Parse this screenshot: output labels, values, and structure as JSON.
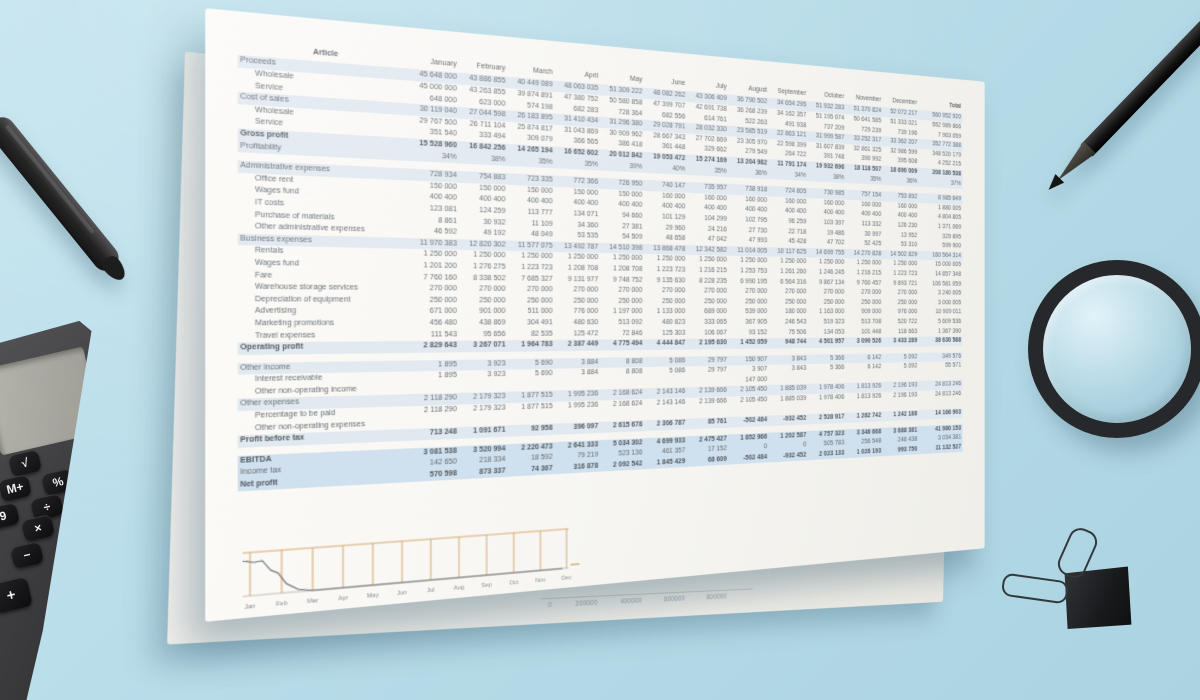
{
  "scene": {
    "background_top": "#c3e4ef",
    "background_bottom": "#abd3e1",
    "paper": "#f7f6f2",
    "paper_under": "#f2f0ea",
    "text": "#646b72",
    "text_bold": "#4f565d",
    "band_light": "#e1e9f0",
    "band_strong": "#cfe0ee",
    "grid_orange": "#cf9b57",
    "chart_line": "#75797d"
  },
  "table": {
    "columns": [
      "Article",
      "January",
      "February",
      "March",
      "April",
      "May",
      "June",
      "July",
      "August",
      "September",
      "October",
      "November",
      "December",
      "Total"
    ],
    "rows": [
      {
        "label": "Proceeds",
        "s": "sec",
        "v": [
          "45 648 000",
          "43 886 855",
          "40 449 089",
          "48 063 035",
          "51 309 222",
          "48 082 262",
          "43 306 409",
          "36 790 502",
          "34 654 295",
          "51 932 283",
          "51 370 824",
          "52 072 217",
          "560 952 920"
        ]
      },
      {
        "label": "Wholesale",
        "s": "sub",
        "v": [
          "45 000 000",
          "43 263 855",
          "39 874 891",
          "47 380 752",
          "50 580 858",
          "47 399 707",
          "42 691 738",
          "36 268 239",
          "34 162 357",
          "51 195 074",
          "50 641 585",
          "51 333 021",
          "552 989 866"
        ]
      },
      {
        "label": "Service",
        "s": "sub",
        "v": [
          "648 000",
          "623 000",
          "574 198",
          "682 283",
          "728 364",
          "682 556",
          "614 761",
          "522 263",
          "491 938",
          "737 209",
          "729 239",
          "739 196",
          "7 963 059"
        ]
      },
      {
        "label": "Cost of sales",
        "s": "sec",
        "v": [
          "30 119 040",
          "27 044 598",
          "26 183 895",
          "31 410 434",
          "31 296 380",
          "29 028 791",
          "28 032 330",
          "23 585 519",
          "22 863 121",
          "31 999 587",
          "33 252 317",
          "33 362 207",
          "352 772 388"
        ]
      },
      {
        "label": "Wholesale",
        "s": "sub",
        "v": [
          "29 767 500",
          "26 711 104",
          "25 874 817",
          "31 043 869",
          "30 909 962",
          "28 667 343",
          "27 702 669",
          "23 305 970",
          "22 598 399",
          "31 607 839",
          "32 861 325",
          "32 986 599",
          "348 520 179"
        ]
      },
      {
        "label": "Service",
        "s": "sub",
        "v": [
          "351 540",
          "333 494",
          "309 079",
          "366 565",
          "386 418",
          "361 448",
          "329 662",
          "279 549",
          "264 722",
          "391 748",
          "390 992",
          "395 608",
          "4 252 215"
        ]
      },
      {
        "label": "Gross profit",
        "s": "secb",
        "v": [
          "15 528 960",
          "16 842 256",
          "14 265 194",
          "16 652 602",
          "20 012 842",
          "19 053 472",
          "15 274 169",
          "13 204 982",
          "11 791 174",
          "19 932 696",
          "18 118 507",
          "18 690 009",
          "208 180 538"
        ]
      },
      {
        "label": "Profitability",
        "s": "sec",
        "v": [
          "34%",
          "38%",
          "35%",
          "35%",
          "39%",
          "40%",
          "35%",
          "36%",
          "34%",
          "38%",
          "35%",
          "36%",
          "37%"
        ]
      },
      {
        "label": "",
        "s": "sp",
        "v": [
          "",
          "",
          "",
          "",
          "",
          "",
          "",
          "",
          "",
          "",
          "",
          "",
          ""
        ]
      },
      {
        "label": "Administrative expenses",
        "s": "sec",
        "v": [
          "728 934",
          "754 883",
          "723 335",
          "772 366",
          "726 950",
          "740 147",
          "735 957",
          "738 918",
          "724 805",
          "730 985",
          "757 154",
          "753 892",
          "8 985 649"
        ]
      },
      {
        "label": "Office rent",
        "s": "sub",
        "v": [
          "150 000",
          "150 000",
          "150 000",
          "150 000",
          "150 000",
          "160 000",
          "160 000",
          "160 000",
          "160 000",
          "160 000",
          "160 000",
          "160 000",
          "1 880 005"
        ]
      },
      {
        "label": "Wages fund",
        "s": "sub",
        "v": [
          "400 400",
          "400 400",
          "400 400",
          "400 400",
          "400 400",
          "400 400",
          "400 400",
          "400 400",
          "400 400",
          "400 400",
          "400 400",
          "400 400",
          "4 804 805"
        ]
      },
      {
        "label": "IT costs",
        "s": "sub",
        "v": [
          "123 081",
          "124 259",
          "113 777",
          "134 071",
          "94 660",
          "101 129",
          "104 299",
          "102 795",
          "96 259",
          "103 397",
          "113 332",
          "126 230",
          "1 371 069"
        ]
      },
      {
        "label": "Purchase of materials",
        "s": "sub",
        "v": [
          "8 861",
          "30 932",
          "11 109",
          "34 360",
          "27 381",
          "29 960",
          "24 216",
          "27 730",
          "22 718",
          "19 486",
          "30 997",
          "13 952",
          "329 895"
        ]
      },
      {
        "label": "Other administrative expenses",
        "s": "sub",
        "v": [
          "46 592",
          "49 192",
          "48 049",
          "53 535",
          "54 509",
          "48 658",
          "47 042",
          "47 993",
          "45 428",
          "47 702",
          "52 425",
          "53 310",
          "599 900"
        ]
      },
      {
        "label": "Business expenses",
        "s": "sec",
        "v": [
          "11 970 383",
          "12 820 302",
          "11 577 075",
          "13 492 787",
          "14 510 398",
          "13 868 478",
          "12 342 582",
          "11 014 005",
          "10 117 625",
          "14 699 755",
          "14 270 828",
          "14 502 829",
          "160 564 314"
        ]
      },
      {
        "label": "Rentals",
        "s": "sub",
        "v": [
          "1 250 000",
          "1 250 000",
          "1 250 000",
          "1 250 000",
          "1 250 000",
          "1 250 000",
          "1 250 000",
          "1 250 000",
          "1 250 000",
          "1 250 000",
          "1 250 000",
          "1 250 000",
          "15 000 005"
        ]
      },
      {
        "label": "Wages fund",
        "s": "sub",
        "v": [
          "1 201 200",
          "1 276 275",
          "1 223 723",
          "1 208 708",
          "1 208 708",
          "1 223 723",
          "1 216 215",
          "1 253 753",
          "1 261 260",
          "1 246 245",
          "1 216 215",
          "1 223 723",
          "14 857 348"
        ]
      },
      {
        "label": "Fare",
        "s": "sub",
        "v": [
          "7 760 160",
          "8 338 502",
          "7 685 327",
          "9 131 977",
          "9 748 752",
          "9 135 630",
          "8 228 235",
          "6 990 195",
          "6 564 316",
          "9 867 134",
          "9 760 457",
          "9 893 721",
          "106 581 059"
        ]
      },
      {
        "label": "Warehouse storage services",
        "s": "sub",
        "v": [
          "270 000",
          "270 000",
          "270 000",
          "270 000",
          "270 000",
          "270 000",
          "270 000",
          "270 000",
          "270 000",
          "270 000",
          "270 000",
          "270 000",
          "3 240 005"
        ]
      },
      {
        "label": "Depreciation of equipment",
        "s": "sub",
        "v": [
          "250 000",
          "250 000",
          "250 000",
          "250 000",
          "250 000",
          "250 000",
          "250 000",
          "250 000",
          "250 000",
          "250 000",
          "250 000",
          "250 000",
          "3 000 005"
        ]
      },
      {
        "label": "Advertising",
        "s": "sub",
        "v": [
          "671 000",
          "901 000",
          "511 000",
          "776 000",
          "1 197 000",
          "1 133 000",
          "689 000",
          "539 000",
          "180 000",
          "1 163 000",
          "909 000",
          "976 000",
          "10 909 011"
        ]
      },
      {
        "label": "Marketing promotions",
        "s": "sub",
        "v": [
          "456 480",
          "438 869",
          "304 491",
          "480 630",
          "513 092",
          "480 823",
          "333 065",
          "367 905",
          "246 543",
          "519 323",
          "513 708",
          "520 722",
          "5 609 536"
        ]
      },
      {
        "label": "Travel expenses",
        "s": "sub",
        "v": [
          "111 543",
          "95 656",
          "82 535",
          "125 472",
          "72 846",
          "125 303",
          "106 067",
          "93 152",
          "75 506",
          "134 053",
          "101 448",
          "118 663",
          "1 367 390"
        ]
      },
      {
        "label": "Operating profit",
        "s": "secb",
        "v": [
          "2 829 643",
          "3 267 071",
          "1 964 783",
          "2 387 449",
          "4 775 494",
          "4 444 847",
          "2 195 630",
          "1 452 059",
          "948 744",
          "4 501 957",
          "3 090 526",
          "3 433 289",
          "38 630 588"
        ]
      },
      {
        "label": "",
        "s": "sp",
        "v": [
          "",
          "",
          "",
          "",
          "",
          "",
          "",
          "",
          "",
          "",
          "",
          "",
          ""
        ]
      },
      {
        "label": "Other income",
        "s": "sec",
        "v": [
          "1 895",
          "3 923",
          "5 690",
          "3 884",
          "8 808",
          "5 086",
          "29 797",
          "150 907",
          "3 843",
          "5 366",
          "6 142",
          "5 092",
          "349 576"
        ]
      },
      {
        "label": "Interest receivable",
        "s": "sub",
        "v": [
          "1 895",
          "3 923",
          "5 690",
          "3 884",
          "8 808",
          "5 086",
          "29 797",
          "3 907",
          "3 843",
          "5 366",
          "6 142",
          "5 092",
          "55 571"
        ]
      },
      {
        "label": "Other non-operating income",
        "s": "sub",
        "v": [
          "",
          "",
          "",
          "",
          "",
          "",
          "",
          "147 000",
          "",
          "",
          "",
          "",
          ""
        ]
      },
      {
        "label": "Other expenses",
        "s": "sec",
        "v": [
          "2 118 290",
          "2 179 323",
          "1 877 515",
          "1 995 236",
          "2 168 624",
          "2 143 146",
          "2 139 666",
          "2 105 450",
          "1 885 039",
          "1 978 406",
          "1 813 926",
          "2 196 193",
          "24 813 246"
        ]
      },
      {
        "label": "Percentage to be paid",
        "s": "sub",
        "v": [
          "2 118 290",
          "2 179 323",
          "1 877 515",
          "1 995 236",
          "2 168 624",
          "2 143 146",
          "2 139 666",
          "2 105 450",
          "1 885 039",
          "1 978 406",
          "1 813 926",
          "2 196 193",
          "24 813 246"
        ]
      },
      {
        "label": "Other non-operating expenses",
        "s": "sub",
        "v": [
          "",
          "",
          "",
          "",
          "",
          "",
          "",
          "",
          "",
          "",
          "",
          "",
          ""
        ]
      },
      {
        "label": "Profit before tax",
        "s": "secb",
        "v": [
          "713 248",
          "1 091 671",
          "92 958",
          "396 097",
          "2 615 678",
          "2 306 787",
          "85 761",
          "-502 484",
          "-932 452",
          "2 528 917",
          "1 282 742",
          "1 242 188",
          "14 166 903"
        ]
      },
      {
        "label": "",
        "s": "sp",
        "v": [
          "",
          "",
          "",
          "",
          "",
          "",
          "",
          "",
          "",
          "",
          "",
          "",
          ""
        ]
      },
      {
        "label": "EBITDA",
        "s": "ebb",
        "v": [
          "3 081 538",
          "3 520 994",
          "2 220 473",
          "2 641 333",
          "5 034 302",
          "4 699 933",
          "2 475 427",
          "1 852 966",
          "1 202 587",
          "4 757 323",
          "3 346 668",
          "3 688 381",
          "41 980 153"
        ]
      },
      {
        "label": "Income tax",
        "s": "eb",
        "v": [
          "142 650",
          "218 334",
          "18 592",
          "79 219",
          "523 136",
          "461 357",
          "17 152",
          "0",
          "0",
          "505 783",
          "256 548",
          "248 438",
          "3 034 381"
        ]
      },
      {
        "label": "Net profit",
        "s": "ebb",
        "v": [
          "570 598",
          "873 337",
          "74 367",
          "316 878",
          "2 092 542",
          "1 845 429",
          "68 609",
          "-502 484",
          "-932 452",
          "2 023 133",
          "1 026 193",
          "993 750",
          "11 132 527"
        ]
      }
    ]
  },
  "mini_chart": {
    "type": "line",
    "months": [
      "Jan",
      "Feb",
      "Mar",
      "Apr",
      "May",
      "Jun",
      "Jul",
      "Aug",
      "Sep",
      "Oct",
      "Nov",
      "Dec"
    ]
  },
  "under_sheet_axis": [
    "0",
    "200000",
    "400000",
    "600000",
    "800000"
  ],
  "calculator": {
    "keys": [
      "√",
      "%",
      "M+",
      "÷",
      "9",
      "×",
      "−",
      "+"
    ]
  }
}
